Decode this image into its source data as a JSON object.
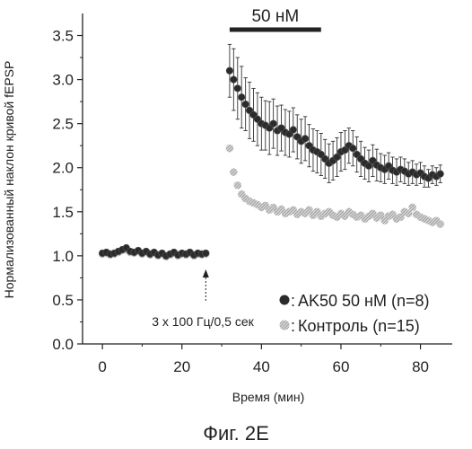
{
  "chart_data": {
    "type": "scatter",
    "xlabel": "Время (мин)",
    "ylabel": "Нормализованный наклон кривой fEPSP",
    "xlim": [
      -5,
      88
    ],
    "ylim": [
      0,
      3.75
    ],
    "x_ticks": [
      0,
      20,
      40,
      60,
      80
    ],
    "y_ticks": [
      0.0,
      0.5,
      1.0,
      1.5,
      2.0,
      2.5,
      3.0,
      3.5
    ],
    "x_tick_labels": [
      "0",
      "20",
      "40",
      "60",
      "80"
    ],
    "y_tick_labels": [
      "0.0",
      "0.5",
      "1.0",
      "1.5",
      "2.0",
      "2.5",
      "3.0",
      "3.5"
    ],
    "grid": false,
    "legend_position": "bottom-right",
    "annotation": "3 x 100 Гц/0,5 сек",
    "annotation_arrow_x": 26,
    "concentration_label": "50 нМ",
    "concentration_bar": [
      32,
      55
    ],
    "series": [
      {
        "name": "AK50 50 нМ (n=8)",
        "color": "#2b2b2b",
        "marker": "filled-circle",
        "x": [
          0,
          1,
          2,
          3,
          4,
          5,
          6,
          7,
          8,
          9,
          10,
          11,
          12,
          13,
          14,
          15,
          16,
          17,
          18,
          19,
          20,
          21,
          22,
          23,
          24,
          25,
          26,
          32,
          33,
          34,
          35,
          36,
          37,
          38,
          39,
          40,
          41,
          42,
          43,
          44,
          45,
          46,
          47,
          48,
          49,
          50,
          51,
          52,
          53,
          54,
          55,
          56,
          57,
          58,
          59,
          60,
          61,
          62,
          63,
          64,
          65,
          66,
          67,
          68,
          69,
          70,
          71,
          72,
          73,
          74,
          75,
          76,
          77,
          78,
          79,
          80,
          81,
          82,
          83,
          84,
          85
        ],
        "y": [
          1.03,
          1.04,
          1.02,
          1.03,
          1.05,
          1.07,
          1.09,
          1.05,
          1.04,
          1.06,
          1.03,
          1.05,
          1.02,
          1.04,
          1.01,
          1.03,
          1.0,
          1.02,
          1.04,
          1.01,
          1.03,
          1.02,
          1.04,
          1.01,
          1.03,
          1.02,
          1.03,
          3.1,
          3.0,
          2.9,
          2.8,
          2.72,
          2.65,
          2.6,
          2.55,
          2.5,
          2.48,
          2.45,
          2.5,
          2.42,
          2.45,
          2.4,
          2.38,
          2.43,
          2.35,
          2.3,
          2.33,
          2.25,
          2.2,
          2.18,
          2.15,
          2.1,
          2.05,
          2.08,
          2.12,
          2.18,
          2.2,
          2.25,
          2.22,
          2.15,
          2.1,
          2.05,
          2.02,
          2.08,
          2.03,
          2.0,
          1.98,
          2.02,
          1.97,
          1.95,
          1.98,
          1.96,
          1.93,
          1.95,
          1.92,
          1.94,
          1.9,
          1.88,
          1.92,
          1.9,
          1.93
        ],
        "error": [
          0,
          0,
          0,
          0,
          0,
          0,
          0,
          0,
          0,
          0,
          0,
          0,
          0,
          0,
          0,
          0,
          0,
          0,
          0,
          0,
          0,
          0,
          0,
          0,
          0,
          0,
          0,
          0.3,
          0.35,
          0.35,
          0.35,
          0.3,
          0.32,
          0.3,
          0.3,
          0.3,
          0.28,
          0.3,
          0.28,
          0.28,
          0.26,
          0.26,
          0.26,
          0.25,
          0.25,
          0.25,
          0.25,
          0.24,
          0.24,
          0.24,
          0.24,
          0.22,
          0.22,
          0.22,
          0.22,
          0.22,
          0.22,
          0.2,
          0.2,
          0.2,
          0.2,
          0.18,
          0.18,
          0.18,
          0.18,
          0.16,
          0.16,
          0.15,
          0.15,
          0.15,
          0.14,
          0.14,
          0.13,
          0.13,
          0.12,
          0.12,
          0.12,
          0.1,
          0.1,
          0.1,
          0.1
        ]
      },
      {
        "name": "Контроль (n=15)",
        "color": "#9a9a9a",
        "marker": "hatched-circle",
        "x": [
          0,
          1,
          2,
          3,
          4,
          5,
          6,
          7,
          8,
          9,
          10,
          11,
          12,
          13,
          14,
          15,
          16,
          17,
          18,
          19,
          20,
          21,
          22,
          23,
          24,
          25,
          26,
          32,
          33,
          34,
          35,
          36,
          37,
          38,
          39,
          40,
          41,
          42,
          43,
          44,
          45,
          46,
          47,
          48,
          49,
          50,
          51,
          52,
          53,
          54,
          55,
          56,
          57,
          58,
          59,
          60,
          61,
          62,
          63,
          64,
          65,
          66,
          67,
          68,
          69,
          70,
          71,
          72,
          73,
          74,
          75,
          76,
          77,
          78,
          79,
          80,
          81,
          82,
          83,
          84,
          85
        ],
        "y": [
          1.02,
          1.03,
          1.01,
          1.02,
          1.04,
          1.06,
          1.07,
          1.04,
          1.03,
          1.05,
          1.02,
          1.04,
          1.01,
          1.03,
          1.0,
          1.02,
          0.99,
          1.01,
          1.03,
          1.0,
          1.02,
          1.01,
          1.03,
          1.0,
          1.02,
          1.01,
          1.02,
          2.22,
          1.95,
          1.8,
          1.7,
          1.65,
          1.62,
          1.6,
          1.58,
          1.55,
          1.57,
          1.52,
          1.55,
          1.5,
          1.53,
          1.48,
          1.5,
          1.52,
          1.47,
          1.5,
          1.48,
          1.52,
          1.46,
          1.5,
          1.45,
          1.48,
          1.5,
          1.46,
          1.44,
          1.48,
          1.45,
          1.5,
          1.47,
          1.44,
          1.46,
          1.42,
          1.45,
          1.48,
          1.43,
          1.46,
          1.4,
          1.45,
          1.47,
          1.42,
          1.44,
          1.5,
          1.48,
          1.55,
          1.47,
          1.44,
          1.42,
          1.4,
          1.38,
          1.4,
          1.36
        ]
      }
    ]
  },
  "caption": "Фиг. 2E"
}
